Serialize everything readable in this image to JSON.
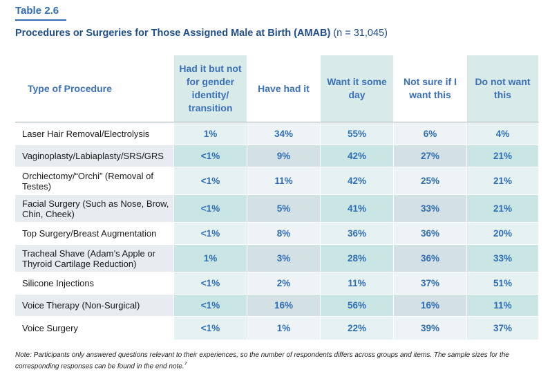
{
  "table_label": "Table 2.6",
  "title": "Procedures or Surgeries for Those Assigned Male at Birth (AMAB)",
  "title_n": "(n = 31,045)",
  "columns": {
    "type": "Type of Procedure",
    "c1": "Had it but not for gender identity/ transition",
    "c2": "Have had it",
    "c3": "Want it some day",
    "c4": "Not sure if I want this",
    "c5": "Do not want this"
  },
  "rows": [
    {
      "label": "Laser Hair Removal/Electrolysis",
      "values": [
        "1%",
        "34%",
        "55%",
        "6%",
        "4%"
      ]
    },
    {
      "label": "Vaginoplasty/Labiaplasty/SRS/GRS",
      "values": [
        "<1%",
        "9%",
        "42%",
        "27%",
        "21%"
      ]
    },
    {
      "label": "Orchiectomy/“Orchi” (Removal of Testes)",
      "values": [
        "<1%",
        "11%",
        "42%",
        "25%",
        "21%"
      ]
    },
    {
      "label": "Facial Surgery (Such as Nose, Brow, Chin, Cheek)",
      "values": [
        "<1%",
        "5%",
        "41%",
        "33%",
        "21%"
      ]
    },
    {
      "label": "Top Surgery/Breast Augmentation",
      "values": [
        "<1%",
        "8%",
        "36%",
        "36%",
        "20%"
      ]
    },
    {
      "label": "Tracheal Shave (Adam’s Apple or Thyroid Cartilage Reduction)",
      "values": [
        "1%",
        "3%",
        "28%",
        "36%",
        "33%"
      ]
    },
    {
      "label": "Silicone Injections",
      "values": [
        "<1%",
        "2%",
        "11%",
        "37%",
        "51%"
      ]
    },
    {
      "label": "Voice Therapy (Non-Surgical)",
      "values": [
        "<1%",
        "16%",
        "56%",
        "16%",
        "11%"
      ]
    },
    {
      "label": "Voice Surgery",
      "values": [
        "<1%",
        "1%",
        "22%",
        "39%",
        "37%"
      ]
    }
  ],
  "note": "Note: Participants only answered questions relevant to their experiences, so the number of respondents differs across groups and items. The sample sizes for the corresponding responses can be found in the end note.",
  "note_ref": "7"
}
